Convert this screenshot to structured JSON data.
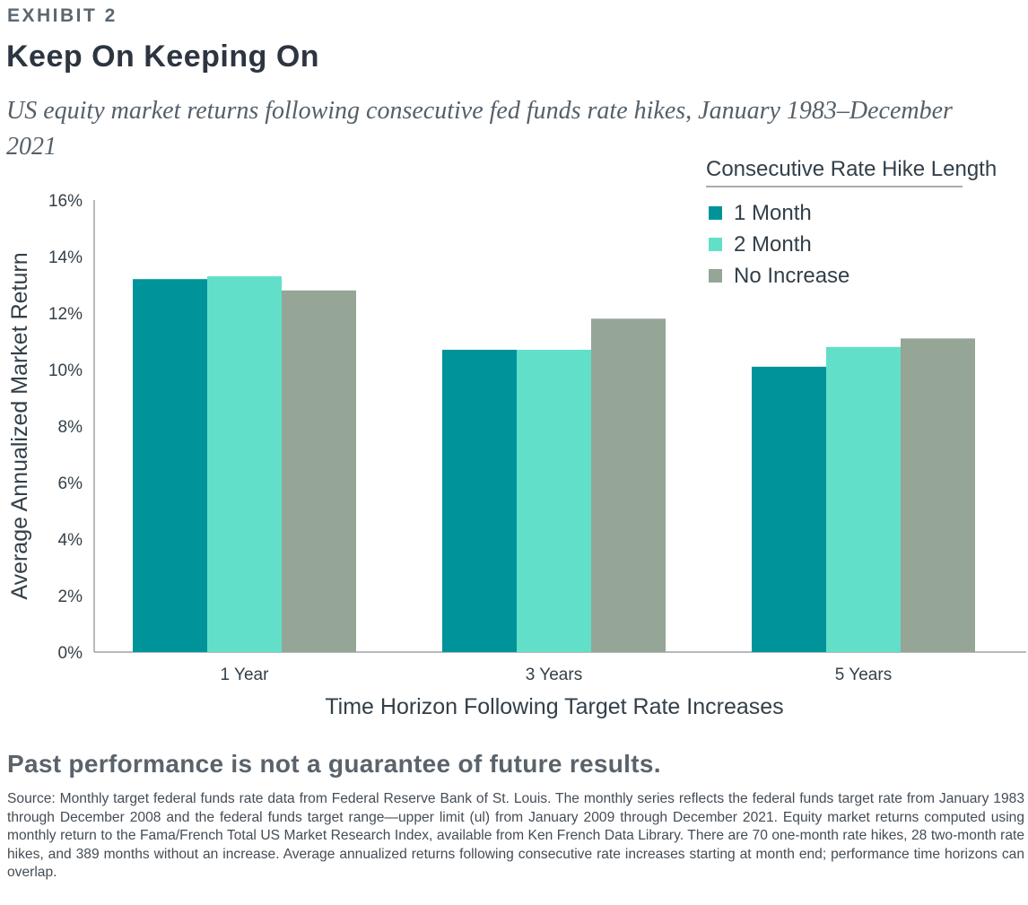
{
  "header": {
    "exhibit": "EXHIBIT 2",
    "title": "Keep On Keeping On",
    "subtitle": "US equity market returns following consecutive fed funds rate hikes, January 1983–December 2021"
  },
  "footer": {
    "disclaimer": "Past performance is not a guarantee of future results.",
    "source": "Source: Monthly target federal funds rate data from Federal Reserve Bank of St. Louis. The monthly series reflects the federal funds target rate from January 1983 through December 2008 and the federal funds target range—upper limit (ul) from January 2009 through December 2021. Equity market returns computed using monthly return to the Fama/French Total US Market Research Index, available from Ken French Data Library. There are 70 one-month rate hikes, 28 two-month rate hikes, and 389 months without an increase. Average annualized returns following consecutive rate increases starting at month end; performance time horizons can overlap."
  },
  "chart_data": {
    "type": "bar",
    "categories": [
      "1 Year",
      "3 Years",
      "5 Years"
    ],
    "series": [
      {
        "name": "1 Month",
        "color": "#00949a",
        "values": [
          13.2,
          10.7,
          10.1
        ]
      },
      {
        "name": "2 Month",
        "color": "#62dfc9",
        "values": [
          13.3,
          10.7,
          10.8
        ]
      },
      {
        "name": "No Increase",
        "color": "#95a596",
        "values": [
          12.8,
          11.8,
          11.1
        ]
      }
    ],
    "xlabel": "Time Horizon Following Target Rate Increases",
    "ylabel": "Average Annualized Market Return",
    "yticks": [
      "0%",
      "2%",
      "4%",
      "6%",
      "8%",
      "10%",
      "12%",
      "14%",
      "16%"
    ],
    "ylim": [
      0,
      16
    ],
    "legend_title": "Consecutive Rate Hike Length",
    "legend_position": "top-right",
    "grid": false
  }
}
